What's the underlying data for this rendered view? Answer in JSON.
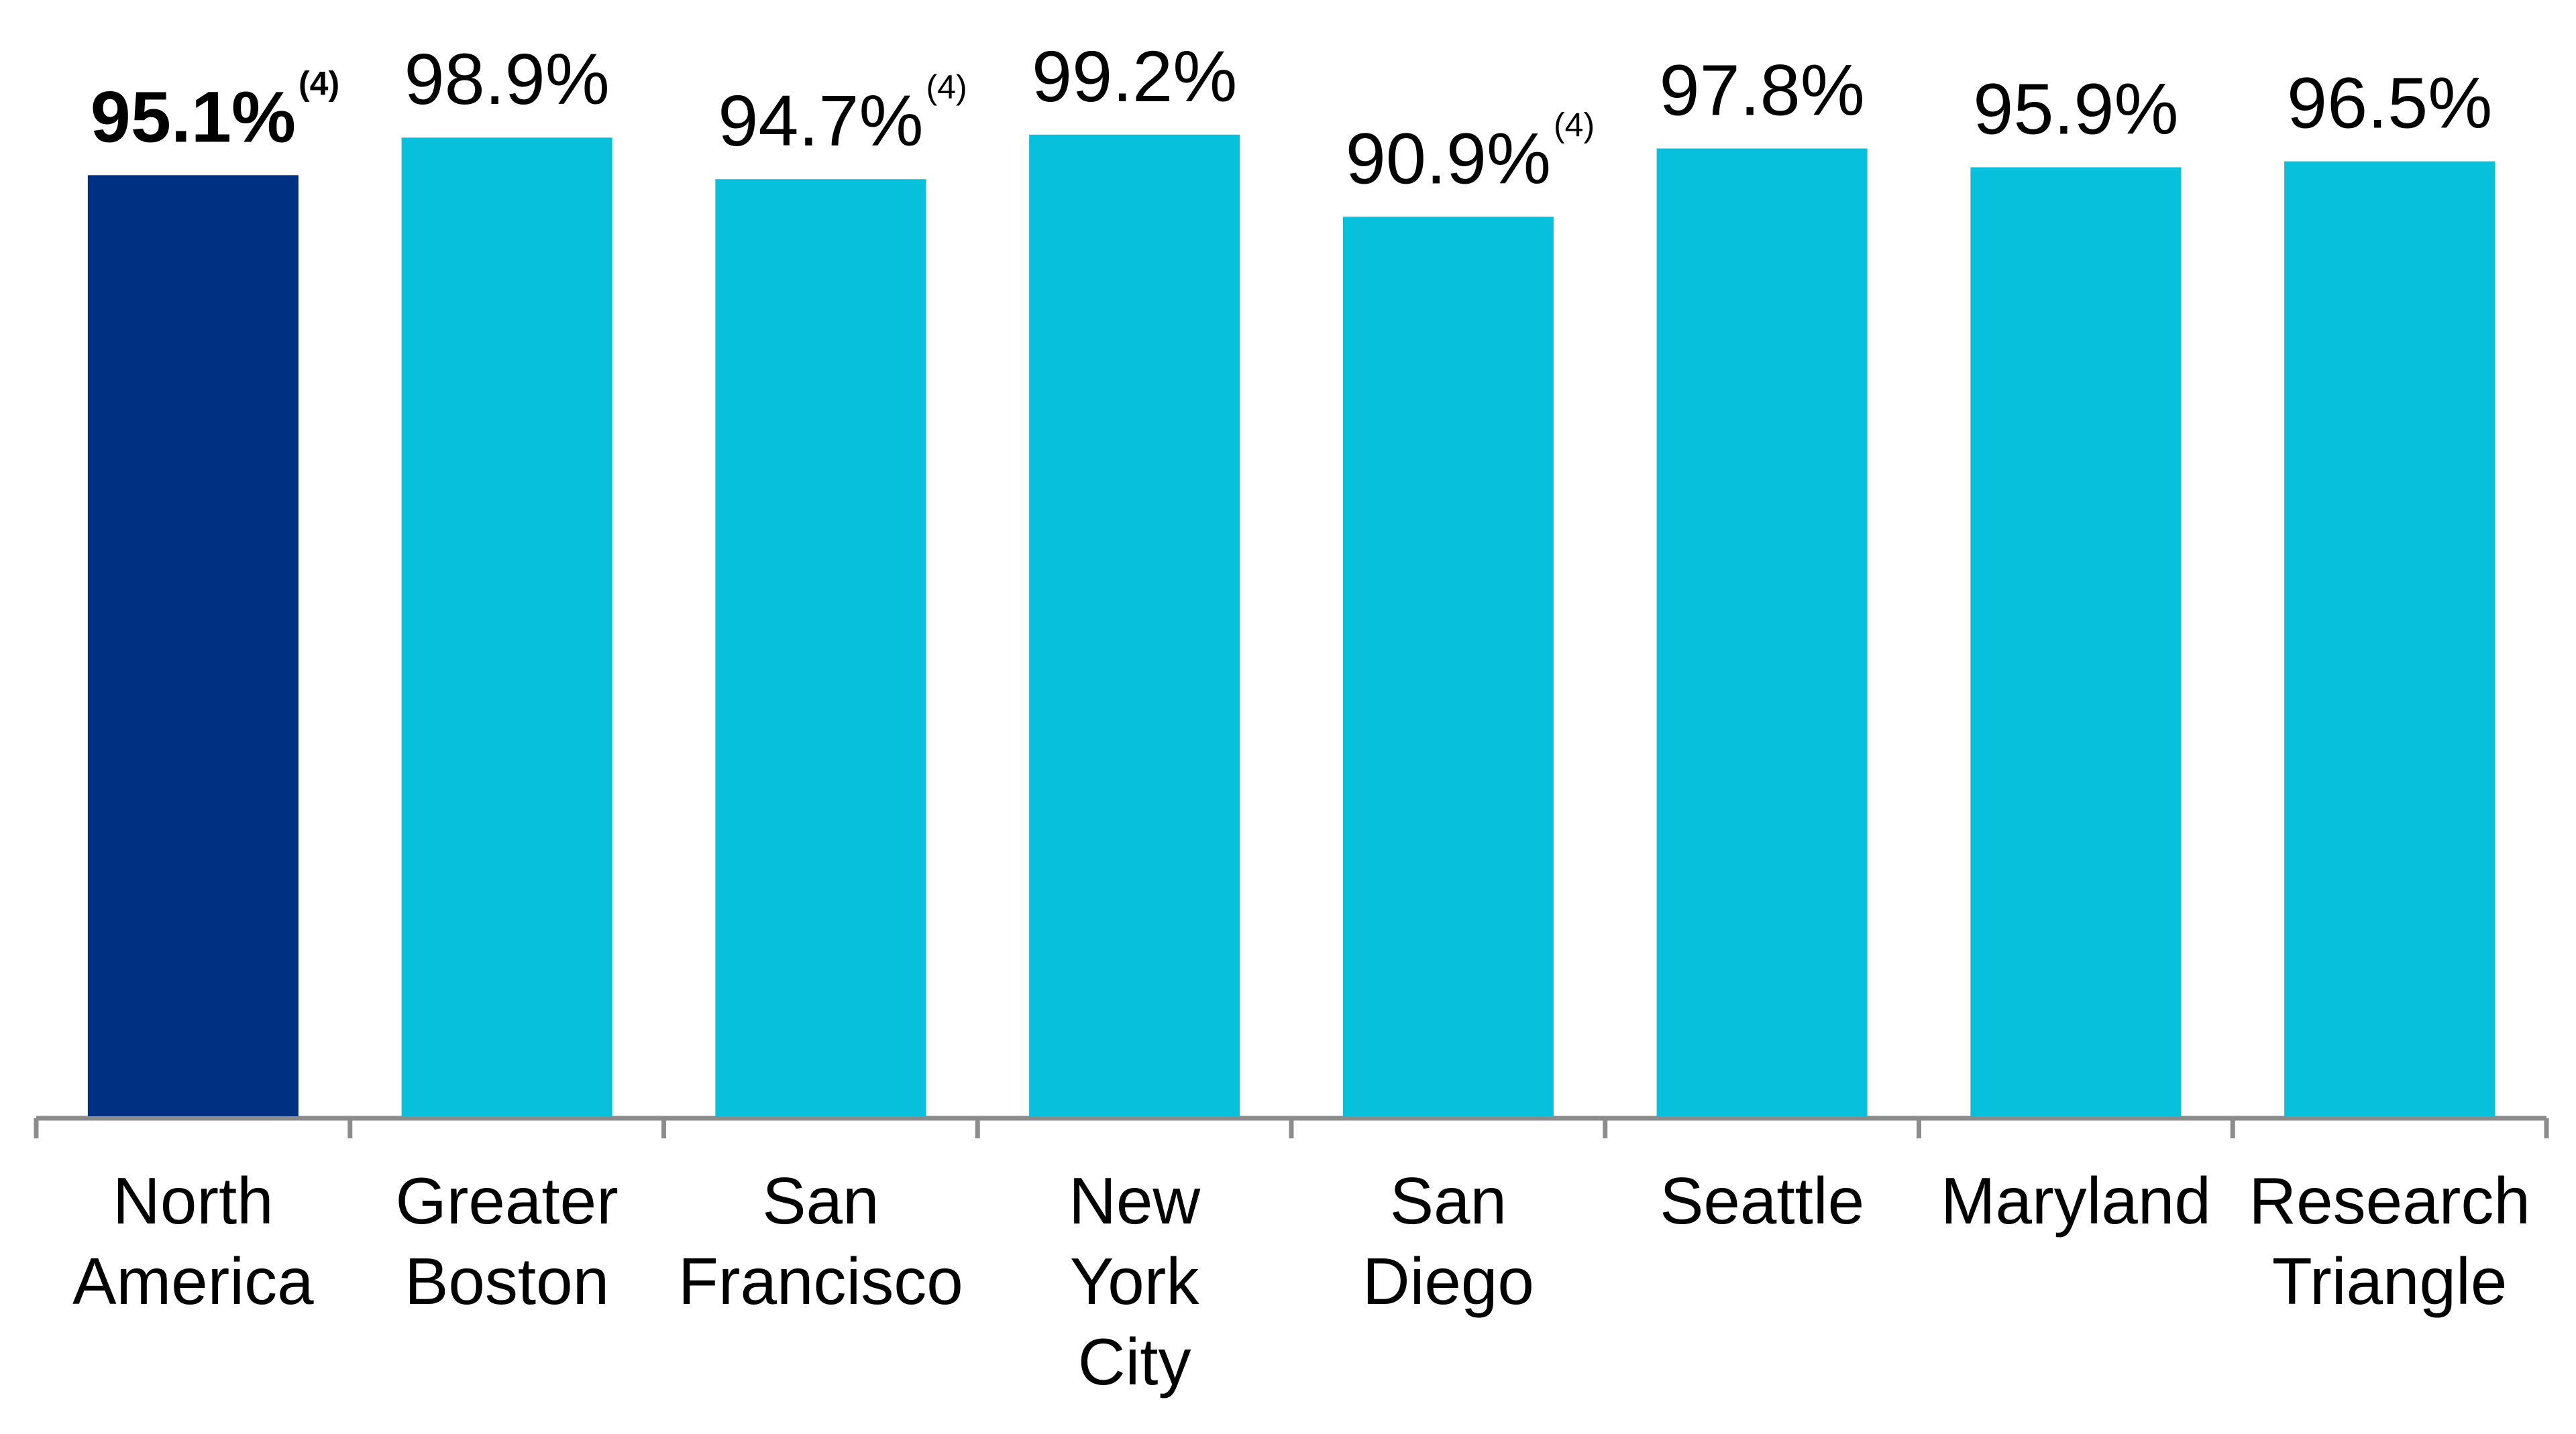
{
  "chart_data": {
    "type": "bar",
    "categories": [
      "North America",
      "Greater Boston",
      "San Francisco",
      "New York City",
      "San Diego",
      "Seattle",
      "Maryland",
      "Research Triangle"
    ],
    "values": [
      95.1,
      98.9,
      94.7,
      99.2,
      90.9,
      97.8,
      95.9,
      96.5
    ],
    "value_labels": [
      "95.1%",
      "98.9%",
      "94.7%",
      "99.2%",
      "90.9%",
      "97.8%",
      "95.9%",
      "96.5%"
    ],
    "footnotes": [
      "(4)",
      null,
      "(4)",
      null,
      "(4)",
      null,
      null,
      null
    ],
    "colors": [
      "#003082",
      "#06c0dc",
      "#06c0dc",
      "#06c0dc",
      "#06c0dc",
      "#06c0dc",
      "#06c0dc",
      "#06c0dc"
    ],
    "highlight_index": 0,
    "ylim": [
      0,
      100
    ]
  }
}
